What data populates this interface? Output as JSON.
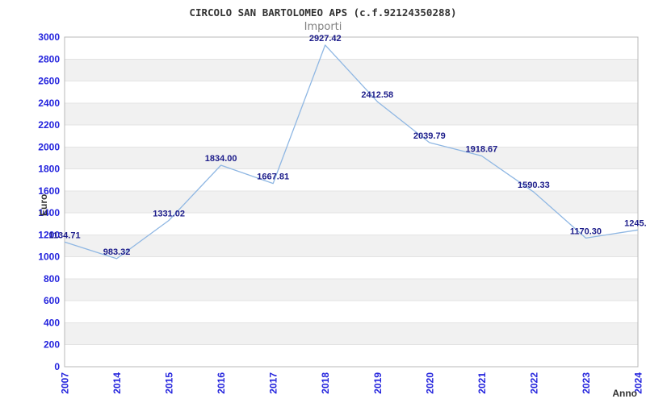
{
  "header": {
    "title": "CIRCOLO SAN BARTOLOMEO APS (c.f.92124350288)",
    "subtitle": "Importi"
  },
  "chart_data": {
    "type": "line",
    "title": "CIRCOLO SAN BARTOLOMEO APS (c.f.92124350288)",
    "subtitle": "Importi",
    "xlabel": "Anno",
    "ylabel": "Euro",
    "categories": [
      "2007",
      "2014",
      "2015",
      "2016",
      "2017",
      "2018",
      "2019",
      "2020",
      "2021",
      "2022",
      "2023",
      "2024"
    ],
    "values": [
      1134.71,
      983.32,
      1331.02,
      1834.0,
      1667.81,
      2927.42,
      2412.58,
      2039.79,
      1918.67,
      1590.33,
      1170.3,
      1245.0
    ],
    "point_labels": [
      "1134.71",
      "983.32",
      "1331.02",
      "1834.00",
      "1667.81",
      "2927.42",
      "2412.58",
      "2039.79",
      "1918.67",
      "1590.33",
      "1170.30",
      "1245.0"
    ],
    "ylim": [
      0,
      3000
    ],
    "ytick_step": 200,
    "grid": "horizontal-bands",
    "legend_position": "none",
    "colors": {
      "line": "#8fb7e3",
      "tick_label": "#2323dd",
      "point_label": "#1c1c8a",
      "band_alt": "#f1f1f1",
      "band_main": "#ffffff",
      "gridline": "#e3e3e3",
      "plot_border": "#b8b8b8",
      "title": "#333333",
      "subtitle": "#808080",
      "axis_title": "#333333"
    }
  }
}
